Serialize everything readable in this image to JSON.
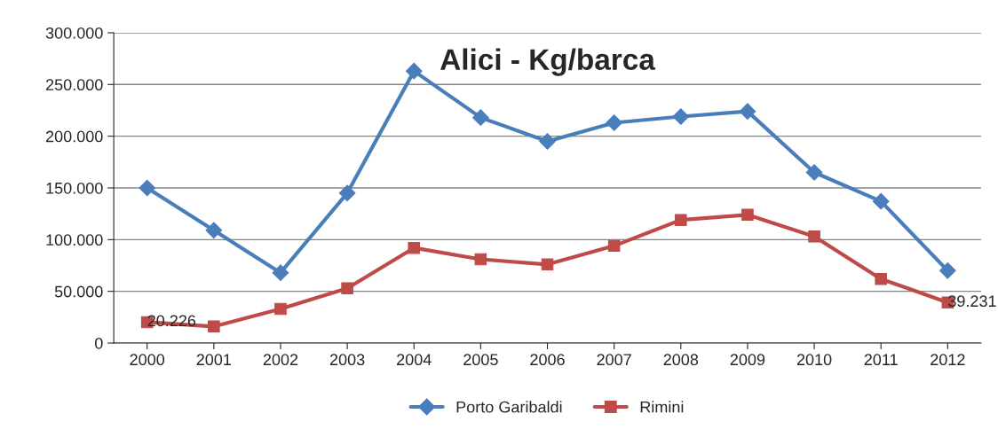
{
  "chart_data": {
    "type": "line",
    "title": "Alici - Kg/barca",
    "categories": [
      "2000",
      "2001",
      "2002",
      "2003",
      "2004",
      "2005",
      "2006",
      "2007",
      "2008",
      "2009",
      "2010",
      "2011",
      "2012"
    ],
    "series": [
      {
        "name": "Porto Garibaldi",
        "color": "#4a7ebb",
        "marker": "diamond",
        "values": [
          150000,
          109000,
          68000,
          145000,
          263000,
          218000,
          195000,
          213000,
          219000,
          224000,
          165000,
          137000,
          70000
        ]
      },
      {
        "name": "Rimini",
        "color": "#be4b48",
        "marker": "square",
        "values": [
          20226,
          16000,
          33000,
          53000,
          92000,
          81000,
          76000,
          94000,
          119000,
          124000,
          103000,
          62000,
          39231
        ],
        "value_labels": [
          "20.226",
          null,
          null,
          null,
          null,
          null,
          null,
          null,
          null,
          null,
          null,
          null,
          "39.231"
        ]
      }
    ],
    "ylim": [
      0,
      300000
    ],
    "yticks": [
      {
        "value": 0,
        "label": "0"
      },
      {
        "value": 50000,
        "label": "50.000"
      },
      {
        "value": 100000,
        "label": "100.000"
      },
      {
        "value": 150000,
        "label": "150.000"
      },
      {
        "value": 200000,
        "label": "200.000"
      },
      {
        "value": 250000,
        "label": "250.000"
      },
      {
        "value": 300000,
        "label": "300.000"
      }
    ],
    "grid": "y",
    "legend": "bottom",
    "line_style": "solid"
  }
}
